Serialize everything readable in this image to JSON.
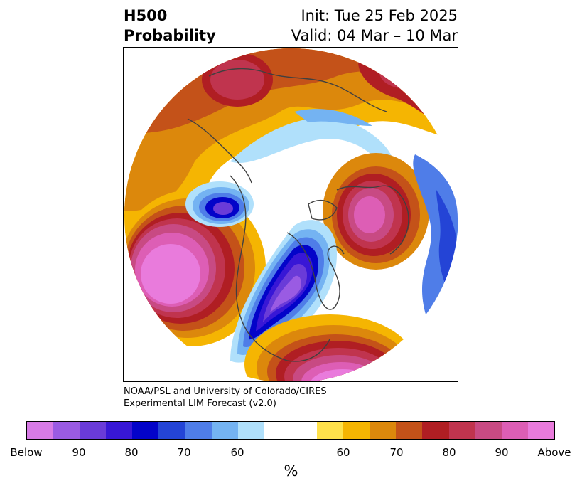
{
  "title": {
    "left_line1": "H500",
    "left_line2": "Probability",
    "right_line1": "Init: Tue 25 Feb 2025",
    "right_line2": "Valid: 04 Mar – 10 Mar"
  },
  "credit": {
    "line1": "NOAA/PSL and University of Colorado/CIRES",
    "line2": "Experimental LIM Forecast (v2.0)"
  },
  "colorbar": {
    "unit": "%",
    "colors": [
      "#d77be6",
      "#9a5be3",
      "#6a3bd8",
      "#3817d6",
      "#0303c9",
      "#2444d6",
      "#4f7de8",
      "#74b3f2",
      "#b0e0fb",
      "#ffffff",
      "#ffffff",
      "#fee14b",
      "#f5b502",
      "#dc880c",
      "#c45219",
      "#b01e23",
      "#c0344e",
      "#c84a83",
      "#dd5eb5",
      "#e97bdc"
    ],
    "tick_labels": [
      "Below",
      "90",
      "80",
      "70",
      "60",
      "60",
      "70",
      "80",
      "90",
      "Above"
    ]
  },
  "map": {
    "projection": "north-polar-stereographic",
    "palette": {
      "ocean": "#ffffff",
      "coastline": "#404040"
    }
  }
}
